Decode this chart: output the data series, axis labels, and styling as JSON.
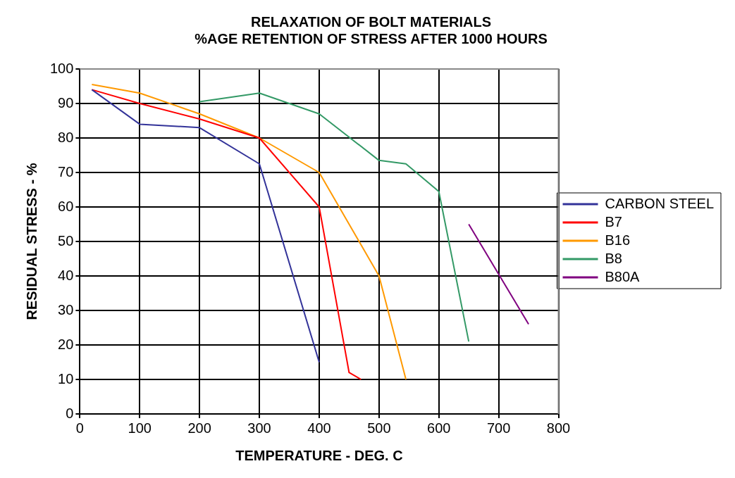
{
  "chart_data": {
    "type": "line",
    "title": [
      "RELAXATION OF BOLT MATERIALS",
      "%AGE RETENTION OF STRESS AFTER 1000 HOURS"
    ],
    "xlabel": "TEMPERATURE - DEG. C",
    "ylabel": "RESIDUAL STRESS - %",
    "xlim": [
      0,
      800
    ],
    "xticks": [
      0,
      100,
      200,
      300,
      400,
      500,
      600,
      700,
      800
    ],
    "ylim": [
      0,
      100
    ],
    "yticks": [
      0,
      10,
      20,
      30,
      40,
      50,
      60,
      70,
      80,
      90,
      100
    ],
    "grid": true,
    "legend": "right",
    "marker": "none",
    "line_style": "solid",
    "series": [
      {
        "name": "CARBON STEEL",
        "color": "#333399",
        "x": [
          20,
          100,
          200,
          300,
          400
        ],
        "values": [
          94,
          84,
          83,
          72.5,
          15
        ]
      },
      {
        "name": "B7",
        "color": "#ff0000",
        "x": [
          20,
          100,
          200,
          300,
          400,
          450,
          470
        ],
        "values": [
          94,
          90,
          85.5,
          80,
          60,
          12,
          10
        ]
      },
      {
        "name": "B16",
        "color": "#ff9900",
        "x": [
          20,
          100,
          200,
          300,
          400,
          500,
          545
        ],
        "values": [
          95.5,
          93,
          87,
          80,
          70,
          40,
          10
        ]
      },
      {
        "name": "B8",
        "color": "#339966",
        "x": [
          200,
          300,
          400,
          500,
          545,
          600,
          650
        ],
        "values": [
          90.5,
          93,
          87,
          73.5,
          72.5,
          64.5,
          21
        ]
      },
      {
        "name": "B80A",
        "color": "#800080",
        "x": [
          650,
          750
        ],
        "values": [
          55,
          26
        ]
      }
    ]
  }
}
